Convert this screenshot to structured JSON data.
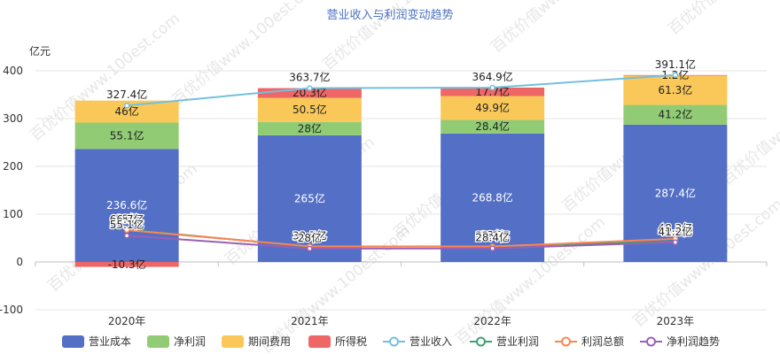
{
  "chart_data": {
    "type": "bar",
    "title": "营业收入与利润变动趋势",
    "ylabel": "亿元",
    "ylim": [
      -100,
      400
    ],
    "yticks": [
      -100,
      0,
      100,
      200,
      300,
      400
    ],
    "categories": [
      "2020年",
      "2021年",
      "2022年",
      "2023年"
    ],
    "series": [
      {
        "name": "营业成本",
        "kind": "bar",
        "color": "#5470c6",
        "values": [
          236.6,
          265,
          268.8,
          287.4
        ],
        "labels": [
          "236.6亿",
          "265亿",
          "268.8亿",
          "287.4亿"
        ]
      },
      {
        "name": "净利润",
        "kind": "bar",
        "color": "#91cc75",
        "values": [
          55.1,
          28,
          28.4,
          41.2
        ],
        "labels": [
          "55.1亿",
          "28亿",
          "28.4亿",
          "41.2亿"
        ]
      },
      {
        "name": "期间费用",
        "kind": "bar",
        "color": "#fac858",
        "values": [
          46,
          50.5,
          49.9,
          61.3
        ],
        "labels": [
          "46亿",
          "50.5亿",
          "49.9亿",
          "61.3亿"
        ]
      },
      {
        "name": "所得税",
        "kind": "bar",
        "color": "#ee6666",
        "values": [
          -10.3,
          20.3,
          17.7,
          1.2
        ],
        "labels": [
          "-10.3亿",
          "20.3亿",
          "17.7亿",
          "1.2亿"
        ]
      },
      {
        "name": "营业收入",
        "kind": "line",
        "color": "#73c0de",
        "values": [
          327.4,
          363.7,
          364.9,
          391.1
        ],
        "labels": [
          "327.4亿",
          "363.7亿",
          "364.9亿",
          "391.1亿"
        ]
      },
      {
        "name": "营业利润",
        "kind": "line",
        "color": "#3ba272",
        "values": [
          68,
          31.9,
          33,
          42.6
        ],
        "labels": [
          "68亿",
          "31.9亿",
          "33亿",
          "42.6亿"
        ]
      },
      {
        "name": "利润总额",
        "kind": "line",
        "color": "#fc8452",
        "values": [
          66.7,
          32.7,
          32.3,
          48.3
        ],
        "labels": [
          "66.7亿",
          "32.7亿",
          "32.3亿",
          "48.3亿"
        ]
      },
      {
        "name": "净利润趋势",
        "kind": "line",
        "color": "#9a60b4",
        "values": [
          55.1,
          28,
          28.4,
          41.2
        ],
        "labels": [
          "55.1亿",
          "28亿",
          "28.4亿",
          "41.2亿"
        ]
      }
    ],
    "legend_position": "bottom",
    "grid": true
  },
  "watermark_text": "百优价值www.100est.com"
}
